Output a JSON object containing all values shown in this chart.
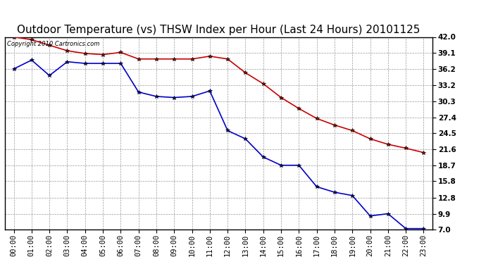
{
  "title": "Outdoor Temperature (vs) THSW Index per Hour (Last 24 Hours) 20101125",
  "copyright_text": "Copyright 2010 Cartronics.com",
  "x_labels": [
    "00:00",
    "01:00",
    "02:00",
    "03:00",
    "04:00",
    "05:00",
    "06:00",
    "07:00",
    "08:00",
    "09:00",
    "10:00",
    "11:00",
    "12:00",
    "13:00",
    "14:00",
    "15:00",
    "16:00",
    "17:00",
    "18:00",
    "19:00",
    "20:00",
    "21:00",
    "22:00",
    "23:00"
  ],
  "red_data": [
    42.0,
    41.5,
    40.5,
    39.5,
    39.0,
    38.8,
    39.2,
    38.0,
    38.0,
    38.0,
    38.0,
    38.5,
    38.0,
    35.5,
    33.5,
    31.0,
    29.0,
    27.2,
    26.0,
    25.0,
    23.5,
    22.5,
    21.8,
    21.0
  ],
  "blue_data": [
    36.2,
    37.8,
    35.0,
    37.5,
    37.2,
    37.2,
    37.2,
    32.0,
    31.2,
    31.0,
    31.2,
    32.2,
    25.0,
    23.5,
    20.2,
    18.7,
    18.7,
    14.8,
    13.8,
    13.2,
    9.5,
    9.9,
    7.2,
    7.2
  ],
  "red_color": "#cc0000",
  "blue_color": "#0000cc",
  "marker_color": "#000000",
  "bg_color": "#ffffff",
  "grid_color": "#999999",
  "y_ticks": [
    7.0,
    9.9,
    12.8,
    15.8,
    18.7,
    21.6,
    24.5,
    27.4,
    30.3,
    33.2,
    36.2,
    39.1,
    42.0
  ],
  "ylim": [
    7.0,
    42.0
  ],
  "title_fontsize": 11,
  "tick_fontsize": 7.5,
  "fig_width": 6.9,
  "fig_height": 3.75,
  "dpi": 100
}
